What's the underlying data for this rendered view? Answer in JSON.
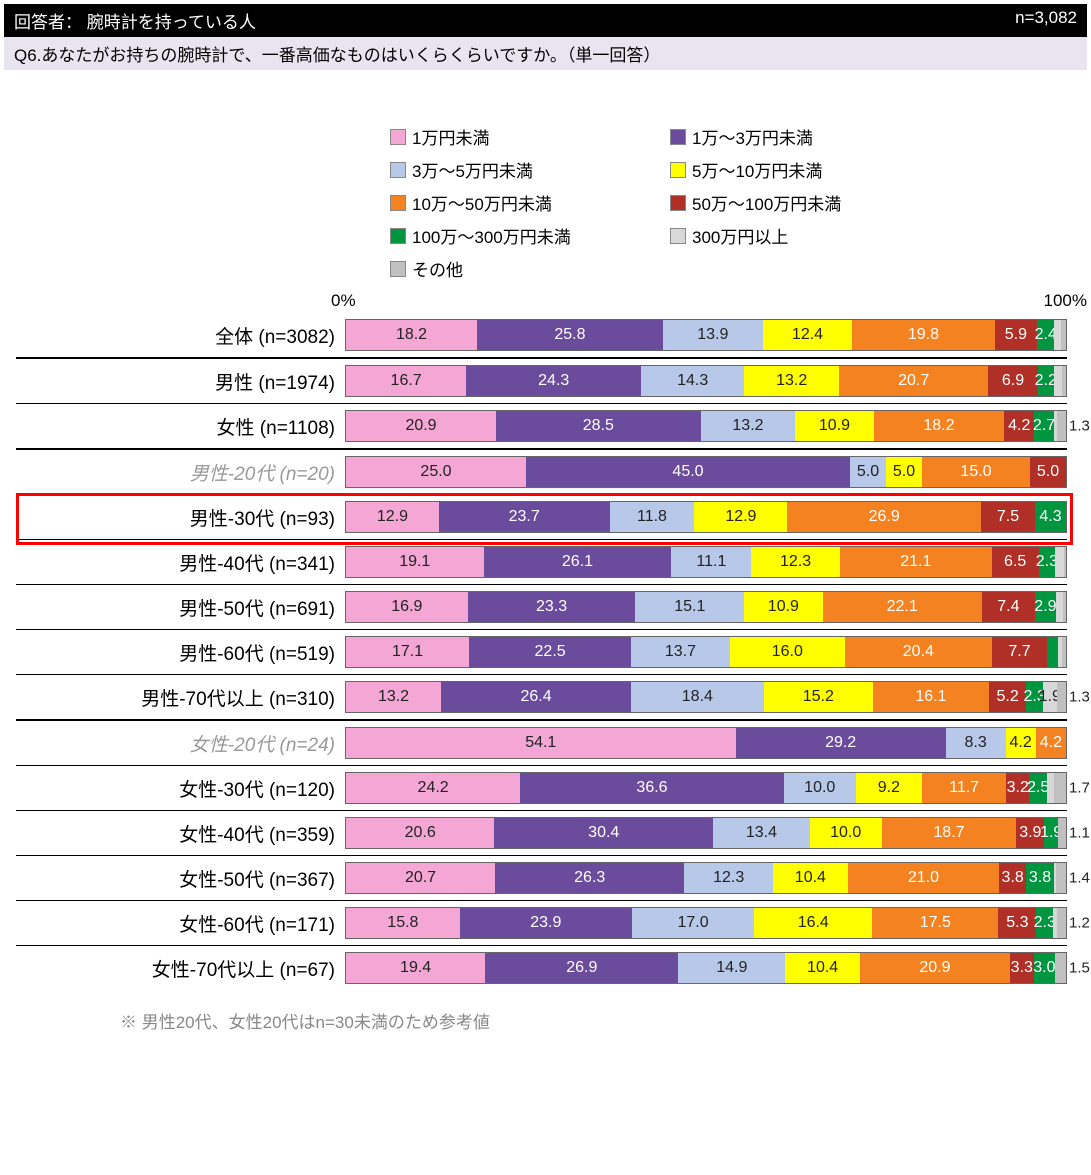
{
  "header": {
    "respondent": "回答者： 腕時計を持っている人",
    "n": "n=3,082"
  },
  "question": "Q6.あなたがお持ちの腕時計で、一番高価なものはいくらくらいですか。（単一回答）",
  "axis": {
    "min_label": "0%",
    "max_label": "100%"
  },
  "footnote": "※ 男性20代、女性20代はn=30未満のため参考値",
  "categories": [
    {
      "label": "1万円未満",
      "color": "#f4a7d5",
      "text": "dark"
    },
    {
      "label": "1万～3万円未満",
      "color": "#6a4b9c",
      "text": "light"
    },
    {
      "label": "3万～5万円未満",
      "color": "#b8c8e8",
      "text": "dark"
    },
    {
      "label": "5万～10万円未満",
      "color": "#ffff00",
      "text": "dark"
    },
    {
      "label": "10万～50万円未満",
      "color": "#f58220",
      "text": "light"
    },
    {
      "label": "50万～100万円未満",
      "color": "#b03028",
      "text": "light"
    },
    {
      "label": "100万～300万円未満",
      "color": "#009640",
      "text": "light"
    },
    {
      "label": "300万円以上",
      "color": "#d8d8d8",
      "text": "dark",
      "pattern": "dots"
    },
    {
      "label": "その他",
      "color": "#c0c0c0",
      "text": "dark",
      "pattern": "stripes"
    }
  ],
  "highlight_row_index": 4,
  "rows": [
    {
      "label": "全体 (n=3082)",
      "sep_after": "thick",
      "values": [
        18.2,
        25.8,
        13.9,
        12.4,
        19.8,
        5.9,
        2.4,
        0.9,
        0.7
      ],
      "hide_below": 2.0,
      "overflow": []
    },
    {
      "label": "男性 (n=1974)",
      "sep_after": "thin",
      "values": [
        16.7,
        24.3,
        14.3,
        13.2,
        20.7,
        6.9,
        2.2,
        1.1,
        0.6
      ],
      "hide_below": 2.0,
      "overflow": []
    },
    {
      "label": "女性 (n=1108)",
      "sep_after": "thick",
      "values": [
        20.9,
        28.5,
        13.2,
        10.9,
        18.2,
        4.2,
        2.7,
        0.4,
        1.3
      ],
      "hide_below": 2.0,
      "overflow": [
        "1.3"
      ]
    },
    {
      "label": "男性-20代 (n=20)",
      "muted": true,
      "sep_after": "thin",
      "values": [
        25.0,
        45.0,
        5.0,
        5.0,
        15.0,
        5.0,
        0,
        0,
        0
      ],
      "hide_below": 4.0,
      "overflow": []
    },
    {
      "label": "男性-30代 (n=93)",
      "sep_after": "thin",
      "values": [
        12.9,
        23.7,
        11.8,
        12.9,
        26.9,
        7.5,
        4.3,
        0,
        0
      ],
      "hide_below": 3.0,
      "overflow": []
    },
    {
      "label": "男性-40代 (n=341)",
      "sep_after": "thin",
      "values": [
        19.1,
        26.1,
        11.1,
        12.3,
        21.1,
        6.5,
        2.3,
        1.2,
        0.3
      ],
      "hide_below": 2.2,
      "overflow": []
    },
    {
      "label": "男性-50代 (n=691)",
      "sep_after": "thin",
      "values": [
        16.9,
        23.3,
        15.1,
        10.9,
        22.1,
        7.4,
        2.9,
        1.0,
        0.4
      ],
      "hide_below": 2.2,
      "overflow": []
    },
    {
      "label": "男性-60代 (n=519)",
      "sep_after": "thin",
      "values": [
        17.1,
        22.5,
        13.7,
        16.0,
        20.4,
        7.7,
        1.5,
        0.6,
        0.5
      ],
      "hide_below": 2.2,
      "overflow": []
    },
    {
      "label": "男性-70代以上 (n=310)",
      "sep_after": "thick",
      "values": [
        13.2,
        26.4,
        18.4,
        15.2,
        16.1,
        5.2,
        2.3,
        1.9,
        1.3
      ],
      "hide_below": 1.8,
      "overflow": [
        "1.3"
      ]
    },
    {
      "label": "女性-20代 (n=24)",
      "muted": true,
      "sep_after": "thin",
      "values": [
        54.1,
        29.2,
        8.3,
        4.2,
        4.2,
        0,
        0,
        0,
        0
      ],
      "hide_below": 3.0,
      "overflow": []
    },
    {
      "label": "女性-30代 (n=120)",
      "sep_after": "thin",
      "values": [
        24.2,
        36.6,
        10.0,
        9.2,
        11.7,
        3.2,
        2.5,
        0.9,
        1.7
      ],
      "hide_below": 2.2,
      "overflow": [
        "1.7"
      ]
    },
    {
      "label": "女性-40代 (n=359)",
      "sep_after": "thin",
      "values": [
        20.6,
        30.4,
        13.4,
        10.0,
        18.7,
        3.9,
        1.9,
        0.0,
        1.1
      ],
      "hide_below": 1.8,
      "overflow": [
        "1.1"
      ]
    },
    {
      "label": "女性-50代 (n=367)",
      "sep_after": "thin",
      "values": [
        20.7,
        26.3,
        12.3,
        10.4,
        21.0,
        3.8,
        3.8,
        0.3,
        1.4
      ],
      "hide_below": 2.2,
      "overflow": [
        "1.4"
      ]
    },
    {
      "label": "女性-60代 (n=171)",
      "sep_after": "thin",
      "values": [
        15.8,
        23.9,
        17.0,
        16.4,
        17.5,
        5.3,
        2.3,
        0.6,
        1.2
      ],
      "hide_below": 2.2,
      "overflow": [
        "1.2"
      ]
    },
    {
      "label": "女性-70代以上 (n=67)",
      "sep_after": "none",
      "values": [
        19.4,
        26.9,
        14.9,
        10.4,
        20.9,
        3.3,
        3.0,
        0.0,
        1.5
      ],
      "hide_below": 2.2,
      "overflow": [
        "1.5"
      ]
    }
  ]
}
